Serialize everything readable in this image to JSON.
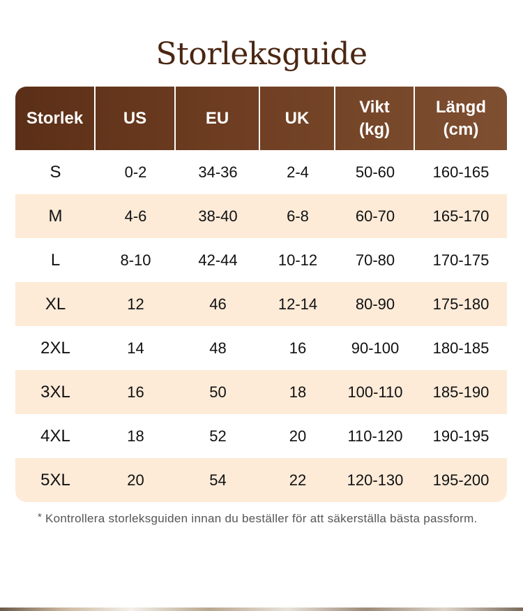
{
  "title": "Storleksguide",
  "headers": [
    "Storlek",
    "US",
    "EU",
    "UK",
    "Vikt\n(kg)",
    "Längd\n(cm)"
  ],
  "rows": [
    [
      "S",
      "0-2",
      "34-36",
      "2-4",
      "50-60",
      "160-165"
    ],
    [
      "M",
      "4-6",
      "38-40",
      "6-8",
      "60-70",
      "165-170"
    ],
    [
      "L",
      "8-10",
      "42-44",
      "10-12",
      "70-80",
      "170-175"
    ],
    [
      "XL",
      "12",
      "46",
      "12-14",
      "80-90",
      "175-180"
    ],
    [
      "2XL",
      "14",
      "48",
      "16",
      "90-100",
      "180-185"
    ],
    [
      "3XL",
      "16",
      "50",
      "18",
      "100-110",
      "185-190"
    ],
    [
      "4XL",
      "18",
      "52",
      "20",
      "110-120",
      "190-195"
    ],
    [
      "5XL",
      "20",
      "54",
      "22",
      "120-130",
      "195-200"
    ]
  ],
  "note": {
    "marker": "*",
    "text": "Kontrollera storleksguiden innan du beställer för att säkerställa bästa passform."
  },
  "colors": {
    "title": "#4a2612",
    "header_start": "#5b2f17",
    "header_end": "#7e4f31",
    "row_alt": "#fdebd8"
  }
}
